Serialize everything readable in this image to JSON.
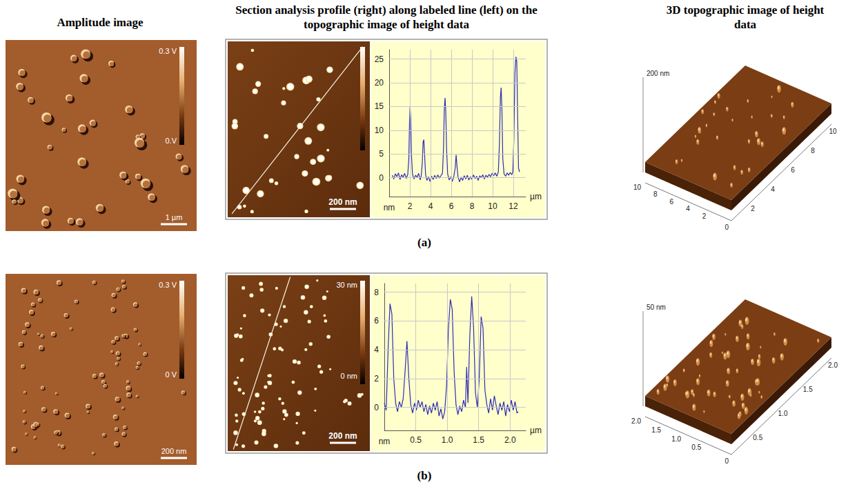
{
  "headers": [
    "Amplitude image",
    "Section analysis profile (right) along labeled line (left) on the topographic image of height data",
    "3D topographic image of height data"
  ],
  "panels": [
    {
      "label": "(a)",
      "amplitude": {
        "colorbar": [
          "0.3 V",
          "0.V"
        ],
        "scale_bar": "1 µm"
      },
      "height": {
        "scale_bar": "200 nm"
      },
      "surface": {
        "z_label": "200 nm",
        "left_ticks": [
          "10",
          "8",
          "6",
          "4",
          "2"
        ],
        "corner": "0",
        "right_ticks": [
          "2",
          "4",
          "6",
          "8",
          "10"
        ]
      }
    },
    {
      "label": "(b)",
      "amplitude": {
        "colorbar": [
          "0.3 V",
          "0 V"
        ],
        "scale_bar": "200 nm"
      },
      "height": {
        "colorbar": [
          "30 nm",
          "0 nm"
        ],
        "scale_bar": "200 nm"
      },
      "surface": {
        "z_label": "50 nm",
        "left_ticks": [
          "2.0",
          "1.5",
          "1.0",
          "0.5"
        ],
        "corner": "0",
        "right_ticks": [
          "0.5",
          "1.0",
          "1.5",
          "2.0"
        ]
      }
    }
  ],
  "chart_data": [
    {
      "type": "line",
      "xlabel": "µm",
      "ylabel": "nm",
      "color": "#2d2db4",
      "grid": true,
      "xlim": [
        0,
        13.2
      ],
      "xticks": [
        2,
        4,
        6,
        8,
        10,
        12
      ],
      "ylim": [
        -4,
        27
      ],
      "yticks": [
        0,
        5,
        10,
        15,
        20,
        25
      ],
      "x": [
        0.3,
        0.45,
        0.6,
        0.75,
        0.9,
        1.05,
        1.2,
        1.35,
        1.5,
        1.65,
        1.8,
        1.9,
        1.97,
        2.02,
        2.08,
        2.15,
        2.25,
        2.4,
        2.55,
        2.7,
        2.85,
        3.0,
        3.1,
        3.2,
        3.28,
        3.35,
        3.42,
        3.52,
        3.65,
        3.8,
        3.95,
        4.1,
        4.25,
        4.4,
        4.55,
        4.7,
        4.85,
        5.0,
        5.15,
        5.25,
        5.33,
        5.4,
        5.47,
        5.55,
        5.65,
        5.8,
        5.95,
        6.1,
        6.25,
        6.38,
        6.47,
        6.55,
        6.65,
        6.8,
        6.95,
        7.1,
        7.25,
        7.4,
        7.55,
        7.7,
        7.85,
        8.0,
        8.15,
        8.3,
        8.45,
        8.6,
        8.75,
        8.9,
        9.05,
        9.2,
        9.35,
        9.5,
        9.65,
        9.8,
        9.95,
        10.1,
        10.25,
        10.4,
        10.55,
        10.65,
        10.75,
        10.82,
        10.9,
        10.98,
        11.1,
        11.25,
        11.4,
        11.55,
        11.7,
        11.85,
        11.95,
        12.05,
        12.15,
        12.25,
        12.33,
        12.42,
        12.5,
        12.6
      ],
      "values": [
        0.5,
        -0.3,
        0.8,
        0.2,
        1.0,
        -0.4,
        0.6,
        0.1,
        0.9,
        -0.2,
        0.7,
        4.0,
        12.0,
        15.0,
        12.5,
        5.0,
        0.8,
        -0.3,
        0.5,
        0.1,
        0.9,
        -0.5,
        0.4,
        3.0,
        7.5,
        8.0,
        5.0,
        0.6,
        -0.6,
        0.2,
        -0.8,
        0.3,
        -0.4,
        0.5,
        -0.2,
        0.6,
        -0.1,
        0.4,
        0.9,
        6.0,
        14.5,
        16.8,
        14.0,
        6.0,
        0.8,
        -0.5,
        0.2,
        -0.8,
        0.3,
        2.0,
        4.8,
        2.5,
        0.2,
        -0.9,
        0.1,
        -0.6,
        0.4,
        -0.3,
        0.5,
        -0.5,
        0.2,
        -0.4,
        0.6,
        -0.2,
        0.3,
        -0.6,
        0.4,
        0.0,
        0.6,
        -0.3,
        0.5,
        0.1,
        0.7,
        0.2,
        0.9,
        0.4,
        1.0,
        0.3,
        1.2,
        7.0,
        17.0,
        19.0,
        14.0,
        4.0,
        0.8,
        0.3,
        1.0,
        0.5,
        1.1,
        0.6,
        1.2,
        8.0,
        22.0,
        25.5,
        24.5,
        12.0,
        2.0,
        1.2
      ]
    },
    {
      "type": "line",
      "xlabel": "µm",
      "ylabel": "nm",
      "color": "#2d2db4",
      "grid": true,
      "xlim": [
        0,
        2.25
      ],
      "xticks": [
        0.5,
        {
          "value": 1,
          "label": "1.0"
        },
        1.5,
        {
          "value": 2,
          "label": "2.0"
        }
      ],
      "ylim": [
        -1.6,
        8.6
      ],
      "yticks": [
        0,
        2,
        4,
        6,
        8
      ],
      "x": [
        0.0,
        0.03,
        0.06,
        0.09,
        0.12,
        0.15,
        0.18,
        0.21,
        0.24,
        0.27,
        0.3,
        0.33,
        0.36,
        0.39,
        0.42,
        0.45,
        0.48,
        0.51,
        0.54,
        0.57,
        0.6,
        0.63,
        0.66,
        0.69,
        0.72,
        0.75,
        0.78,
        0.81,
        0.84,
        0.87,
        0.9,
        0.93,
        0.96,
        0.99,
        1.02,
        1.05,
        1.08,
        1.11,
        1.14,
        1.17,
        1.2,
        1.23,
        1.26,
        1.29,
        1.31,
        1.33,
        1.36,
        1.39,
        1.42,
        1.45,
        1.48,
        1.51,
        1.54,
        1.57,
        1.6,
        1.63,
        1.66,
        1.69,
        1.72,
        1.75,
        1.78,
        1.81,
        1.84,
        1.87,
        1.9,
        1.93,
        1.96,
        1.99,
        2.02,
        2.05,
        2.08,
        2.11,
        2.13
      ],
      "values": [
        0.3,
        -0.2,
        4.0,
        7.2,
        6.5,
        2.0,
        0.3,
        -0.3,
        0.4,
        0.0,
        0.6,
        2.5,
        4.6,
        2.0,
        0.2,
        -0.4,
        0.3,
        -0.2,
        0.5,
        0.0,
        0.4,
        -0.3,
        0.2,
        -0.5,
        0.1,
        -0.4,
        0.3,
        -0.2,
        0.4,
        -0.6,
        -0.1,
        -0.8,
        -0.3,
        1.5,
        5.5,
        7.5,
        6.8,
        2.5,
        0.2,
        -0.5,
        0.1,
        -0.3,
        0.5,
        0.0,
        2.8,
        0.3,
        5.0,
        7.7,
        5.5,
        1.0,
        0.0,
        2.0,
        6.3,
        5.5,
        1.2,
        0.2,
        -0.4,
        0.6,
        -0.2,
        0.8,
        0.1,
        -0.5,
        0.3,
        -0.2,
        0.4,
        -0.6,
        0.2,
        -0.3,
        0.5,
        -0.2,
        0.4,
        -0.4,
        -0.3
      ]
    }
  ]
}
